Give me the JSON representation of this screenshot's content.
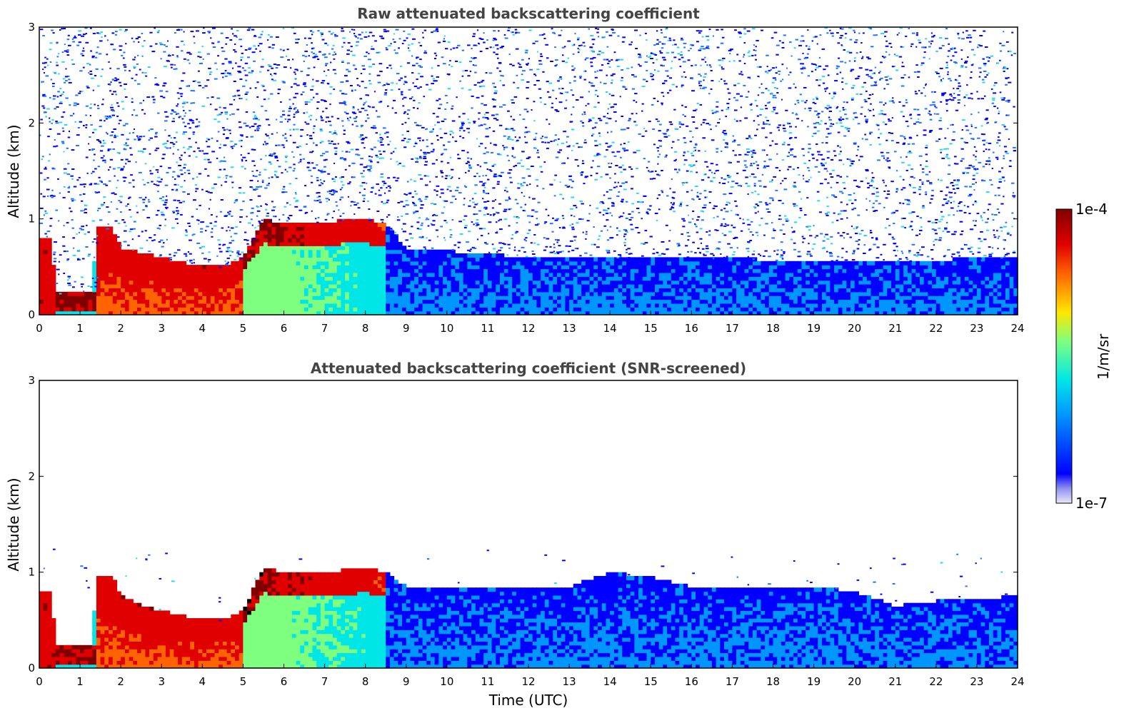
{
  "chart_data": [
    {
      "type": "heatmap",
      "title": "Raw attenuated backscattering coefficient",
      "xlabel": "",
      "ylabel": "Altitude (km)",
      "xlim": [
        0,
        24
      ],
      "ylim": [
        0,
        3
      ],
      "xticks": [
        "0",
        "1",
        "2",
        "3",
        "4",
        "5",
        "6",
        "7",
        "8",
        "9",
        "10",
        "11",
        "12",
        "13",
        "14",
        "15",
        "16",
        "17",
        "18",
        "19",
        "20",
        "21",
        "22",
        "23",
        "24"
      ],
      "yticks": [
        "0",
        "1",
        "2",
        "3"
      ],
      "screened": false,
      "layer_top_km": [
        {
          "t": 0.0,
          "top": 0.8
        },
        {
          "t": 0.3,
          "top": 0.78
        },
        {
          "t": 0.4,
          "top": 0.22
        },
        {
          "t": 1.3,
          "top": 0.22
        },
        {
          "t": 1.4,
          "top": 0.9
        },
        {
          "t": 1.8,
          "top": 0.9
        },
        {
          "t": 2.0,
          "top": 0.7
        },
        {
          "t": 2.5,
          "top": 0.65
        },
        {
          "t": 3.0,
          "top": 0.6
        },
        {
          "t": 3.5,
          "top": 0.55
        },
        {
          "t": 4.0,
          "top": 0.5
        },
        {
          "t": 4.5,
          "top": 0.5
        },
        {
          "t": 5.0,
          "top": 0.6
        },
        {
          "t": 5.5,
          "top": 1.0
        },
        {
          "t": 6.0,
          "top": 0.95
        },
        {
          "t": 6.5,
          "top": 0.95
        },
        {
          "t": 7.0,
          "top": 0.95
        },
        {
          "t": 7.5,
          "top": 1.0
        },
        {
          "t": 8.0,
          "top": 1.0
        },
        {
          "t": 8.5,
          "top": 0.95
        },
        {
          "t": 9.0,
          "top": 0.7
        },
        {
          "t": 12.0,
          "top": 0.6
        },
        {
          "t": 16.0,
          "top": 0.6
        },
        {
          "t": 20.0,
          "top": 0.55
        },
        {
          "t": 24.0,
          "top": 0.6
        }
      ]
    },
    {
      "type": "heatmap",
      "title": "Attenuated backscattering coefficient (SNR-screened)",
      "xlabel": "Time (UTC)",
      "ylabel": "Altitude (km)",
      "xlim": [
        0,
        24
      ],
      "ylim": [
        0,
        3
      ],
      "xticks": [
        "0",
        "1",
        "2",
        "3",
        "4",
        "5",
        "6",
        "7",
        "8",
        "9",
        "10",
        "11",
        "12",
        "13",
        "14",
        "15",
        "16",
        "17",
        "18",
        "19",
        "20",
        "21",
        "22",
        "23",
        "24"
      ],
      "yticks": [
        "0",
        "1",
        "2",
        "3"
      ],
      "screened": true,
      "layer_top_km": [
        {
          "t": 0.0,
          "top": 0.8
        },
        {
          "t": 0.3,
          "top": 0.78
        },
        {
          "t": 0.4,
          "top": 0.22
        },
        {
          "t": 1.3,
          "top": 0.22
        },
        {
          "t": 1.4,
          "top": 0.95
        },
        {
          "t": 1.8,
          "top": 0.95
        },
        {
          "t": 2.0,
          "top": 0.75
        },
        {
          "t": 2.5,
          "top": 0.65
        },
        {
          "t": 3.0,
          "top": 0.6
        },
        {
          "t": 3.5,
          "top": 0.55
        },
        {
          "t": 4.0,
          "top": 0.5
        },
        {
          "t": 4.5,
          "top": 0.5
        },
        {
          "t": 5.0,
          "top": 0.6
        },
        {
          "t": 5.5,
          "top": 1.05
        },
        {
          "t": 6.0,
          "top": 1.0
        },
        {
          "t": 7.0,
          "top": 1.0
        },
        {
          "t": 8.0,
          "top": 1.05
        },
        {
          "t": 8.5,
          "top": 1.0
        },
        {
          "t": 9.0,
          "top": 0.85
        },
        {
          "t": 11.0,
          "top": 0.85
        },
        {
          "t": 13.0,
          "top": 0.85
        },
        {
          "t": 14.0,
          "top": 1.0
        },
        {
          "t": 15.0,
          "top": 0.95
        },
        {
          "t": 16.0,
          "top": 0.85
        },
        {
          "t": 19.0,
          "top": 0.85
        },
        {
          "t": 20.0,
          "top": 0.8
        },
        {
          "t": 21.0,
          "top": 0.65
        },
        {
          "t": 22.0,
          "top": 0.7
        },
        {
          "t": 24.0,
          "top": 0.75
        }
      ]
    }
  ],
  "colorbar": {
    "label": "1/m/sr",
    "max_label": "1e-4",
    "min_label": "1e-7",
    "scale": "log",
    "colormap": "jet",
    "colors": [
      "#e8e8f8",
      "#0000ff",
      "#0096ff",
      "#00e6e6",
      "#7fff7f",
      "#ffe600",
      "#ff6400",
      "#e00000",
      "#800000"
    ]
  }
}
